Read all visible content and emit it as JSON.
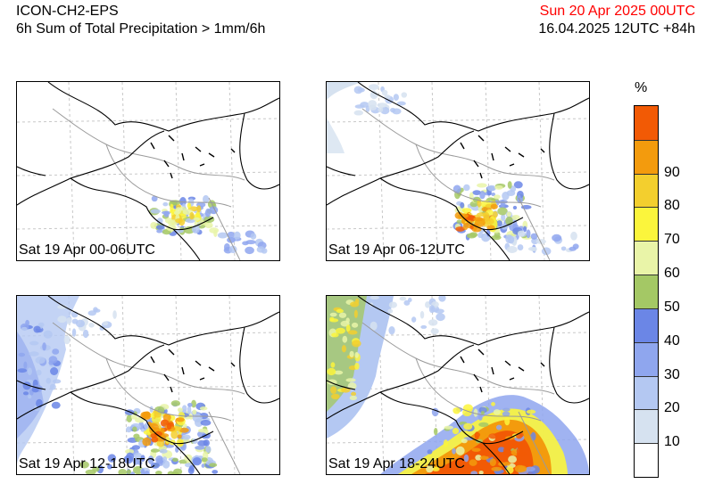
{
  "header": {
    "model": "ICON-CH2-EPS",
    "product": "6h Sum of Total Precipitation > 1mm/6h",
    "valid_time": "Sun 20 Apr 2025 00UTC",
    "run_info": "16.04.2025 12UTC +84h",
    "valid_color": "#ff0000"
  },
  "panels": [
    {
      "label": "Sat 19 Apr 00-06UTC"
    },
    {
      "label": "Sat 19 Apr 06-12UTC"
    },
    {
      "label": "Sat 19 Apr 12-18UTC"
    },
    {
      "label": "Sat 19 Apr 18-24UTC"
    }
  ],
  "colorbar": {
    "unit": "%",
    "ticks": [
      "10",
      "20",
      "30",
      "40",
      "50",
      "60",
      "70",
      "80",
      "90"
    ],
    "colors": [
      "#ffffff",
      "#d6e2f0",
      "#b4c8f2",
      "#8fa6ee",
      "#6b86e6",
      "#a4c865",
      "#e9f4a8",
      "#fbf53c",
      "#f3cf2e",
      "#f39b0d",
      "#f25a05"
    ]
  }
}
